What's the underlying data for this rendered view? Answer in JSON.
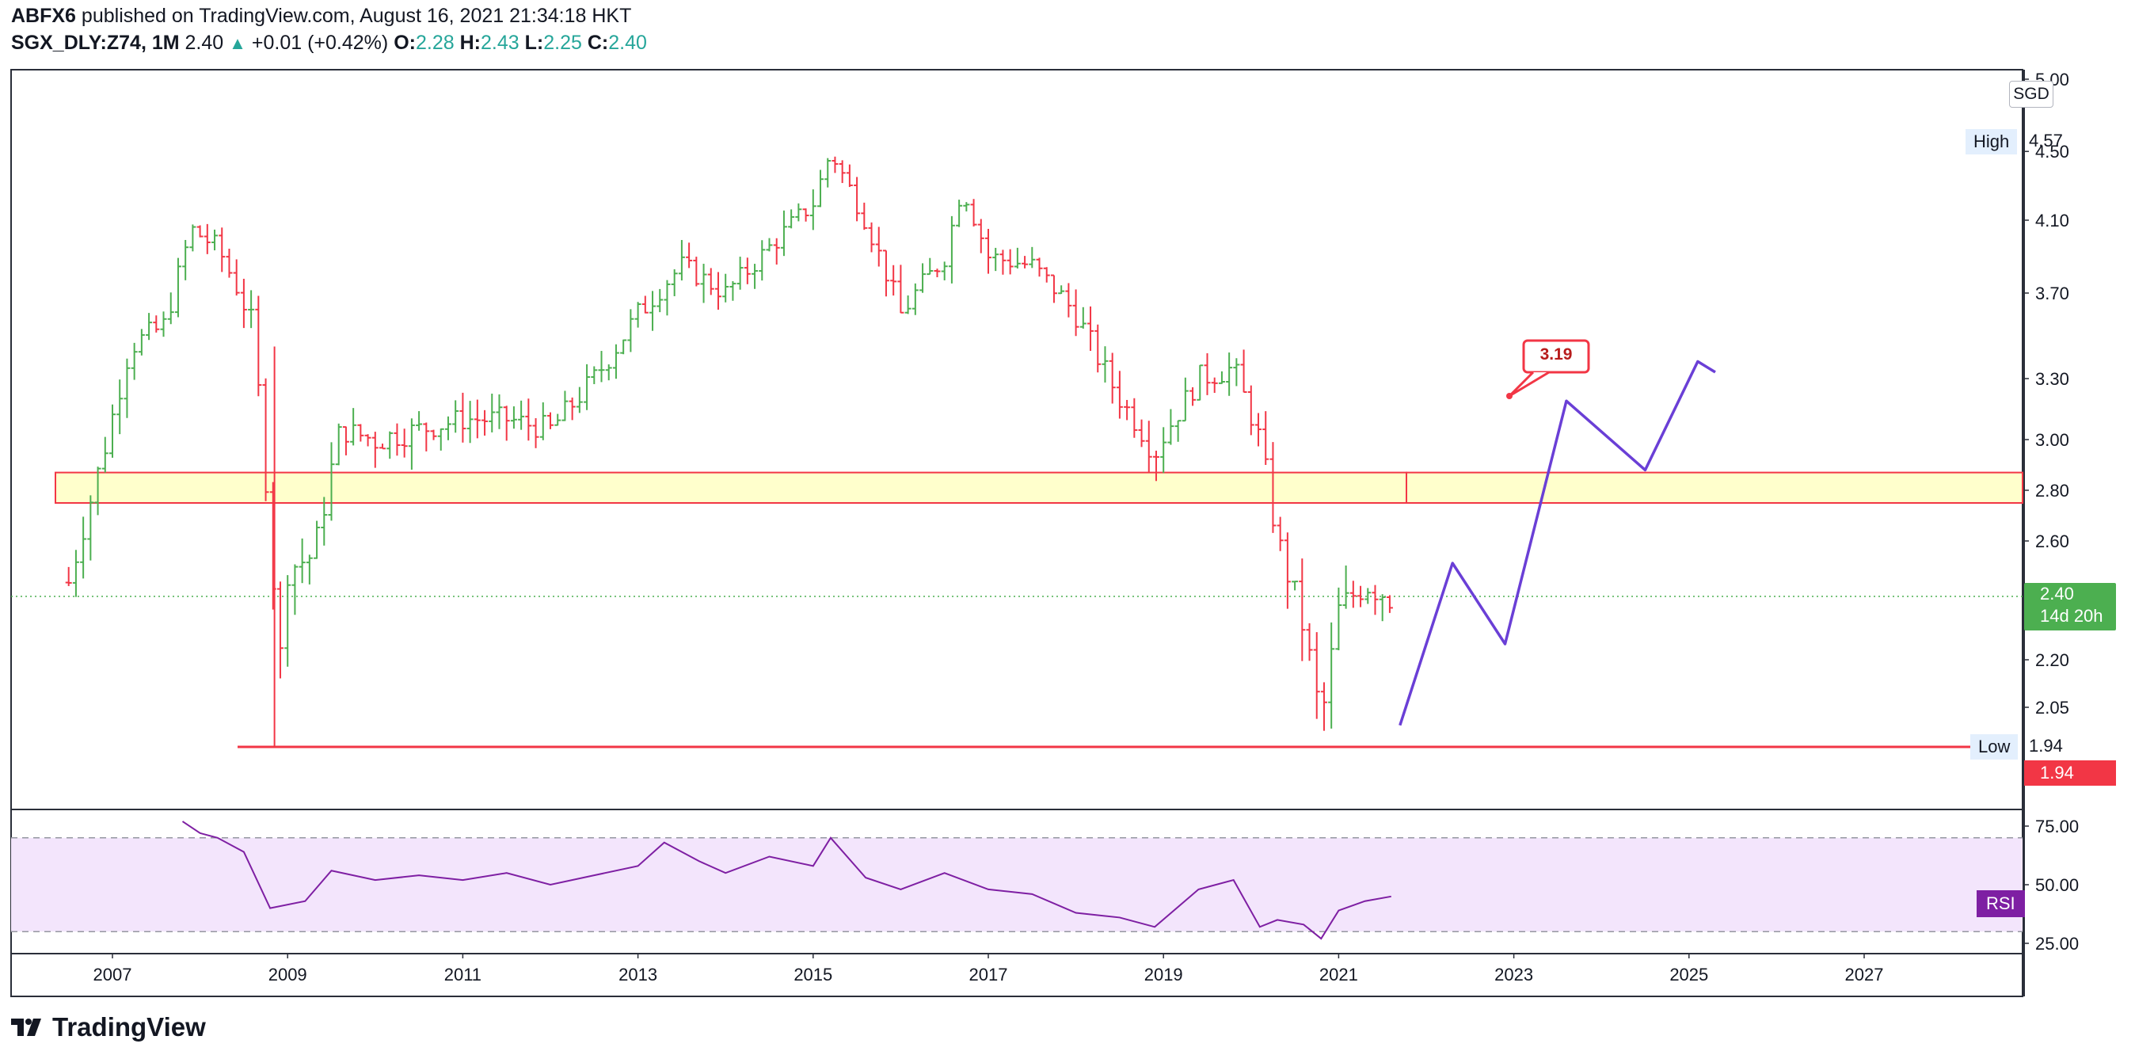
{
  "header": {
    "author": "ABFX6",
    "published_text": "published on TradingView.com, August 16, 2021 21:34:18 HKT",
    "symbol": "SGX_DLY:Z74, 1M",
    "last": "2.40",
    "arrow": "▲",
    "change": "+0.01 (+0.42%)",
    "o_label": "O:",
    "o_val": "2.28",
    "h_label": "H:",
    "h_val": "2.43",
    "l_label": "L:",
    "l_val": "2.25",
    "c_label": "C:",
    "c_val": "2.40"
  },
  "price_axis": {
    "currency": "SGD",
    "high_label": "High",
    "high_value": "4.57",
    "low_label": "Low",
    "low_value": "1.94",
    "low_marker": "1.94",
    "last_price": "2.40",
    "countdown": "14d 20h"
  },
  "rsi": {
    "label": "RSI",
    "ticks": [
      "75.00",
      "50.00",
      "25.00"
    ],
    "upper_band": 70,
    "lower_band": 30
  },
  "annotations": {
    "target_label": "3.19"
  },
  "brand": {
    "name": "TradingView"
  },
  "colors": {
    "up": "#26a69a",
    "bar_up": "#4caf50",
    "bar_down": "#f23645",
    "zone_fill": "#ffffcc",
    "zone_border": "#f23645",
    "projection": "#6a3fd6",
    "rsi": "#7e1fa3",
    "rsi_band": "#f3e5fc"
  },
  "chart_data": [
    {
      "type": "bar",
      "title": "SGX_DLY:Z74, 1M",
      "ylabel": "SGD",
      "ylim": [
        1.85,
        5.0
      ],
      "xlim": [
        2006.0,
        2028.8
      ],
      "y_ticks": [
        5.0,
        4.5,
        4.1,
        3.7,
        3.3,
        3.0,
        2.8,
        2.6,
        2.4,
        2.2,
        2.05
      ],
      "y_tick_labels": [
        "5.00",
        "4.50",
        "4.10",
        "3.70",
        "3.30",
        "3.00",
        "2.80",
        "2.60",
        "",
        "2.20",
        "2.05"
      ],
      "x_ticks": [
        "2007",
        "2009",
        "2011",
        "2013",
        "2015",
        "2017",
        "2019",
        "2021",
        "2023",
        "2025",
        "2027"
      ],
      "ohlc_keypoints": [
        {
          "x": 2006.5,
          "close": 2.45
        },
        {
          "x": 2006.9,
          "close": 2.95
        },
        {
          "x": 2007.2,
          "close": 3.45
        },
        {
          "x": 2007.6,
          "close": 3.55
        },
        {
          "x": 2007.9,
          "close": 4.05
        },
        {
          "x": 2008.2,
          "close": 3.95
        },
        {
          "x": 2008.6,
          "close": 3.55
        },
        {
          "x": 2008.9,
          "close": 2.15
        },
        {
          "x": 2009.0,
          "close": 2.5
        },
        {
          "x": 2009.3,
          "close": 2.55
        },
        {
          "x": 2009.6,
          "close": 3.05
        },
        {
          "x": 2010.0,
          "close": 3.0
        },
        {
          "x": 2010.5,
          "close": 3.05
        },
        {
          "x": 2011.0,
          "close": 3.1
        },
        {
          "x": 2011.5,
          "close": 3.1
        },
        {
          "x": 2012.0,
          "close": 3.05
        },
        {
          "x": 2012.5,
          "close": 3.3
        },
        {
          "x": 2013.0,
          "close": 3.6
        },
        {
          "x": 2013.5,
          "close": 3.85
        },
        {
          "x": 2014.0,
          "close": 3.7
        },
        {
          "x": 2014.5,
          "close": 3.95
        },
        {
          "x": 2015.0,
          "close": 4.2
        },
        {
          "x": 2015.2,
          "close": 4.5
        },
        {
          "x": 2015.6,
          "close": 4.1
        },
        {
          "x": 2016.0,
          "close": 3.6
        },
        {
          "x": 2016.5,
          "close": 3.9
        },
        {
          "x": 2016.7,
          "close": 4.3
        },
        {
          "x": 2017.0,
          "close": 3.9
        },
        {
          "x": 2017.5,
          "close": 3.85
        },
        {
          "x": 2018.0,
          "close": 3.6
        },
        {
          "x": 2018.5,
          "close": 3.2
        },
        {
          "x": 2018.9,
          "close": 2.95
        },
        {
          "x": 2019.4,
          "close": 3.3
        },
        {
          "x": 2019.8,
          "close": 3.35
        },
        {
          "x": 2020.1,
          "close": 3.0
        },
        {
          "x": 2020.3,
          "close": 2.6
        },
        {
          "x": 2020.6,
          "close": 2.3
        },
        {
          "x": 2020.8,
          "close": 2.0
        },
        {
          "x": 2021.0,
          "close": 2.35
        },
        {
          "x": 2021.3,
          "close": 2.45
        },
        {
          "x": 2021.6,
          "close": 2.4
        }
      ],
      "overlays": {
        "support_zone": [
          2.75,
          2.87
        ],
        "low_line": 1.94,
        "last_price_line": 2.4,
        "projection_path": [
          [
            2021.7,
            2.0
          ],
          [
            2022.3,
            2.52
          ],
          [
            2022.9,
            2.25
          ],
          [
            2023.6,
            3.19
          ],
          [
            2024.5,
            2.88
          ],
          [
            2025.1,
            3.38
          ],
          [
            2025.3,
            3.33
          ]
        ],
        "target": {
          "x": 2023.3,
          "y": 3.19,
          "label": "3.19"
        }
      }
    },
    {
      "type": "line",
      "title": "RSI",
      "ylim": [
        20,
        80
      ],
      "y_ticks": [
        75,
        50,
        25
      ],
      "series": [
        {
          "name": "RSI",
          "x": [
            2007.8,
            2008.0,
            2008.2,
            2008.5,
            2008.8,
            2009.2,
            2009.5,
            2010.0,
            2010.5,
            2011.0,
            2011.5,
            2012.0,
            2012.5,
            2013.0,
            2013.3,
            2013.7,
            2014.0,
            2014.5,
            2015.0,
            2015.2,
            2015.6,
            2016.0,
            2016.5,
            2017.0,
            2017.5,
            2018.0,
            2018.5,
            2018.9,
            2019.4,
            2019.8,
            2020.1,
            2020.3,
            2020.6,
            2020.8,
            2021.0,
            2021.3,
            2021.6
          ],
          "values": [
            77,
            72,
            70,
            64,
            40,
            43,
            56,
            52,
            54,
            52,
            55,
            50,
            54,
            58,
            68,
            60,
            55,
            62,
            58,
            70,
            53,
            48,
            55,
            48,
            46,
            38,
            36,
            32,
            48,
            52,
            32,
            35,
            33,
            27,
            39,
            43,
            45
          ]
        }
      ]
    }
  ]
}
